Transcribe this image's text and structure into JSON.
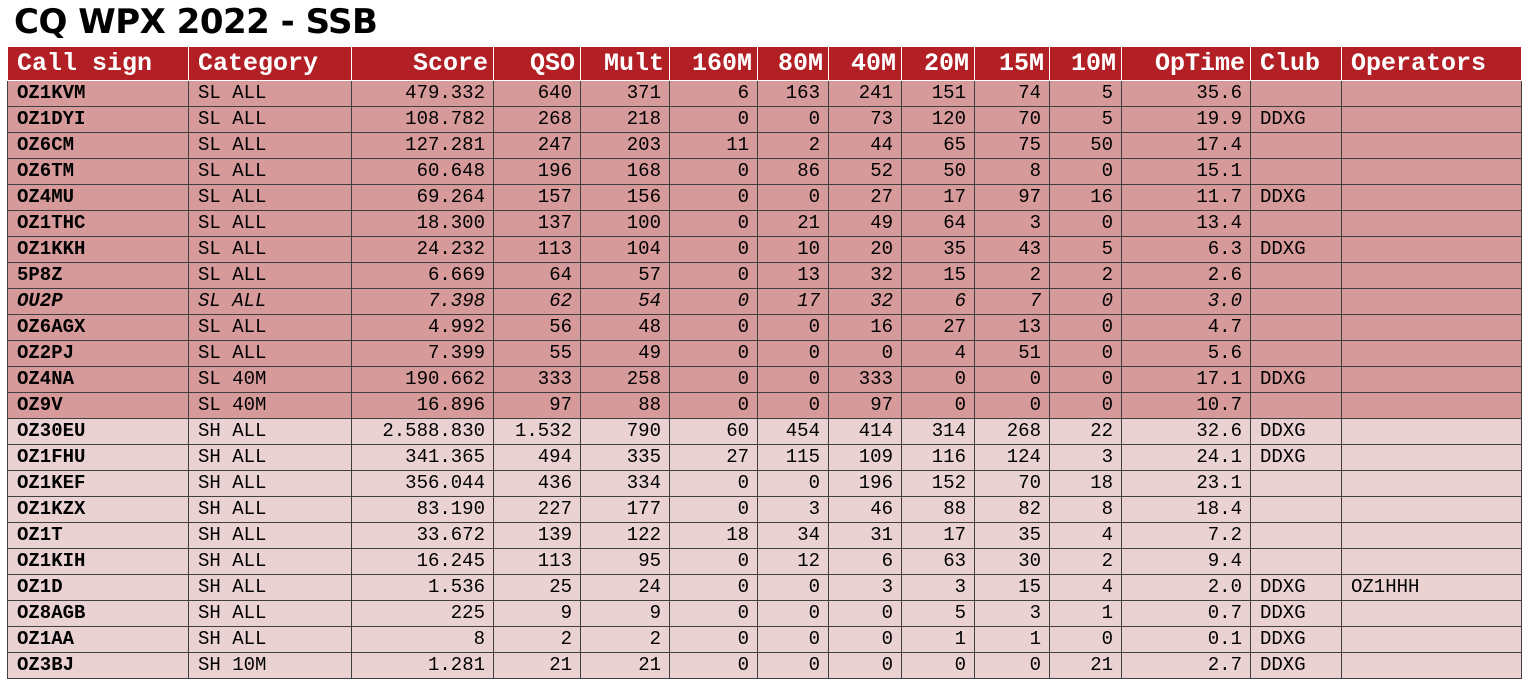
{
  "title": "CQ WPX 2022 - SSB",
  "headers": [
    "Call sign",
    "Category",
    "Score",
    "QSO",
    "Mult",
    "160M",
    "80M",
    "40M",
    "20M",
    "15M",
    "10M",
    "OpTime",
    "Club",
    "Operators"
  ],
  "colors": {
    "header_bg": "#b21f24",
    "single_low_bg": "#d69a9b",
    "single_high_bg": "#ead2d3"
  },
  "rows": [
    {
      "group": "sl",
      "italic": false,
      "cells": [
        "OZ1KVM",
        "SL ALL",
        "479.332",
        "640",
        "371",
        "6",
        "163",
        "241",
        "151",
        "74",
        "5",
        "35.6",
        "",
        ""
      ]
    },
    {
      "group": "sl",
      "italic": false,
      "cells": [
        "OZ1DYI",
        "SL ALL",
        "108.782",
        "268",
        "218",
        "0",
        "0",
        "73",
        "120",
        "70",
        "5",
        "19.9",
        "DDXG",
        ""
      ]
    },
    {
      "group": "sl",
      "italic": false,
      "cells": [
        "OZ6CM",
        "SL ALL",
        "127.281",
        "247",
        "203",
        "11",
        "2",
        "44",
        "65",
        "75",
        "50",
        "17.4",
        "",
        ""
      ]
    },
    {
      "group": "sl",
      "italic": false,
      "cells": [
        "OZ6TM",
        "SL ALL",
        "60.648",
        "196",
        "168",
        "0",
        "86",
        "52",
        "50",
        "8",
        "0",
        "15.1",
        "",
        ""
      ]
    },
    {
      "group": "sl",
      "italic": false,
      "cells": [
        "OZ4MU",
        "SL ALL",
        "69.264",
        "157",
        "156",
        "0",
        "0",
        "27",
        "17",
        "97",
        "16",
        "11.7",
        "DDXG",
        ""
      ]
    },
    {
      "group": "sl",
      "italic": false,
      "cells": [
        "OZ1THC",
        "SL ALL",
        "18.300",
        "137",
        "100",
        "0",
        "21",
        "49",
        "64",
        "3",
        "0",
        "13.4",
        "",
        ""
      ]
    },
    {
      "group": "sl",
      "italic": false,
      "cells": [
        "OZ1KKH",
        "SL ALL",
        "24.232",
        "113",
        "104",
        "0",
        "10",
        "20",
        "35",
        "43",
        "5",
        "6.3",
        "DDXG",
        ""
      ]
    },
    {
      "group": "sl",
      "italic": false,
      "cells": [
        "5P8Z",
        "SL ALL",
        "6.669",
        "64",
        "57",
        "0",
        "13",
        "32",
        "15",
        "2",
        "2",
        "2.6",
        "",
        ""
      ]
    },
    {
      "group": "sl",
      "italic": true,
      "cells": [
        "OU2P",
        "SL ALL",
        "7.398",
        "62",
        "54",
        "0",
        "17",
        "32",
        "6",
        "7",
        "0",
        "3.0",
        "",
        ""
      ]
    },
    {
      "group": "sl",
      "italic": false,
      "cells": [
        "OZ6AGX",
        "SL ALL",
        "4.992",
        "56",
        "48",
        "0",
        "0",
        "16",
        "27",
        "13",
        "0",
        "4.7",
        "",
        ""
      ]
    },
    {
      "group": "sl",
      "italic": false,
      "cells": [
        "OZ2PJ",
        "SL ALL",
        "7.399",
        "55",
        "49",
        "0",
        "0",
        "0",
        "4",
        "51",
        "0",
        "5.6",
        "",
        ""
      ]
    },
    {
      "group": "sl",
      "italic": false,
      "cells": [
        "OZ4NA",
        "SL 40M",
        "190.662",
        "333",
        "258",
        "0",
        "0",
        "333",
        "0",
        "0",
        "0",
        "17.1",
        "DDXG",
        ""
      ]
    },
    {
      "group": "sl",
      "italic": false,
      "cells": [
        "OZ9V",
        "SL 40M",
        "16.896",
        "97",
        "88",
        "0",
        "0",
        "97",
        "0",
        "0",
        "0",
        "10.7",
        "",
        ""
      ]
    },
    {
      "group": "sh",
      "italic": false,
      "cells": [
        "OZ30EU",
        "SH ALL",
        "2.588.830",
        "1.532",
        "790",
        "60",
        "454",
        "414",
        "314",
        "268",
        "22",
        "32.6",
        "DDXG",
        ""
      ]
    },
    {
      "group": "sh",
      "italic": false,
      "cells": [
        "OZ1FHU",
        "SH ALL",
        "341.365",
        "494",
        "335",
        "27",
        "115",
        "109",
        "116",
        "124",
        "3",
        "24.1",
        "DDXG",
        ""
      ]
    },
    {
      "group": "sh",
      "italic": false,
      "cells": [
        "OZ1KEF",
        "SH ALL",
        "356.044",
        "436",
        "334",
        "0",
        "0",
        "196",
        "152",
        "70",
        "18",
        "23.1",
        "",
        ""
      ]
    },
    {
      "group": "sh",
      "italic": false,
      "cells": [
        "OZ1KZX",
        "SH ALL",
        "83.190",
        "227",
        "177",
        "0",
        "3",
        "46",
        "88",
        "82",
        "8",
        "18.4",
        "",
        ""
      ]
    },
    {
      "group": "sh",
      "italic": false,
      "cells": [
        "OZ1T",
        "SH ALL",
        "33.672",
        "139",
        "122",
        "18",
        "34",
        "31",
        "17",
        "35",
        "4",
        "7.2",
        "",
        ""
      ]
    },
    {
      "group": "sh",
      "italic": false,
      "cells": [
        "OZ1KIH",
        "SH ALL",
        "16.245",
        "113",
        "95",
        "0",
        "12",
        "6",
        "63",
        "30",
        "2",
        "9.4",
        "",
        ""
      ]
    },
    {
      "group": "sh",
      "italic": false,
      "cells": [
        "OZ1D",
        "SH ALL",
        "1.536",
        "25",
        "24",
        "0",
        "0",
        "3",
        "3",
        "15",
        "4",
        "2.0",
        "DDXG",
        "OZ1HHH"
      ]
    },
    {
      "group": "sh",
      "italic": false,
      "cells": [
        "OZ8AGB",
        "SH ALL",
        "225",
        "9",
        "9",
        "0",
        "0",
        "0",
        "5",
        "3",
        "1",
        "0.7",
        "DDXG",
        ""
      ]
    },
    {
      "group": "sh",
      "italic": false,
      "cells": [
        "OZ1AA",
        "SH ALL",
        "8",
        "2",
        "2",
        "0",
        "0",
        "0",
        "1",
        "1",
        "0",
        "0.1",
        "DDXG",
        ""
      ]
    },
    {
      "group": "sh",
      "italic": false,
      "cells": [
        "OZ3BJ",
        "SH 10M",
        "1.281",
        "21",
        "21",
        "0",
        "0",
        "0",
        "0",
        "0",
        "21",
        "2.7",
        "DDXG",
        ""
      ]
    }
  ]
}
